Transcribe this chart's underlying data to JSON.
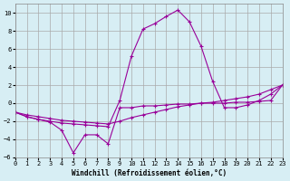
{
  "xlabel": "Windchill (Refroidissement éolien,°C)",
  "bg_color": "#d7eef4",
  "grid_color": "#aaaaaa",
  "line_color": "#990099",
  "xlim": [
    0,
    23
  ],
  "ylim": [
    -6,
    11
  ],
  "xticks": [
    0,
    1,
    2,
    3,
    4,
    5,
    6,
    7,
    8,
    9,
    10,
    11,
    12,
    13,
    14,
    15,
    16,
    17,
    18,
    19,
    20,
    21,
    22,
    23
  ],
  "yticks": [
    -6,
    -4,
    -2,
    0,
    2,
    4,
    6,
    8,
    10
  ],
  "series_peak_x": [
    0,
    1,
    2,
    3,
    4,
    5,
    6,
    7,
    8,
    9,
    10,
    11,
    12,
    13,
    14,
    15,
    16,
    17,
    18,
    19,
    20,
    21,
    22,
    23
  ],
  "series_peak_y": [
    -1.0,
    -1.5,
    -1.8,
    -2.0,
    -2.2,
    -2.3,
    -2.4,
    -2.5,
    -2.6,
    0.3,
    5.2,
    8.2,
    8.8,
    9.6,
    10.3,
    9.0,
    6.3,
    2.4,
    -0.5,
    -0.5,
    -0.2,
    0.3,
    1.0,
    2.0
  ],
  "series_dip_x": [
    0,
    1,
    2,
    3,
    4,
    5,
    6,
    7,
    8,
    9,
    10,
    11,
    12,
    13,
    14,
    15,
    16,
    17,
    18,
    19,
    20,
    21,
    22,
    23
  ],
  "series_dip_y": [
    -1.0,
    -1.5,
    -1.8,
    -2.1,
    -3.0,
    -5.5,
    -3.5,
    -3.5,
    -4.5,
    -0.5,
    -0.5,
    -0.3,
    -0.3,
    -0.2,
    -0.1,
    -0.1,
    0.0,
    0.0,
    0.0,
    0.1,
    0.1,
    0.2,
    0.3,
    2.0
  ],
  "series_flat_x": [
    0,
    1,
    2,
    3,
    4,
    5,
    6,
    7,
    8,
    9,
    10,
    11,
    12,
    13,
    14,
    15,
    16,
    17,
    18,
    19,
    20,
    21,
    22,
    23
  ],
  "series_flat_y": [
    -1.0,
    -1.3,
    -1.5,
    -1.7,
    -1.9,
    -2.0,
    -2.1,
    -2.2,
    -2.3,
    -2.0,
    -1.6,
    -1.3,
    -1.0,
    -0.7,
    -0.4,
    -0.2,
    0.0,
    0.1,
    0.3,
    0.5,
    0.7,
    1.0,
    1.5,
    2.0
  ]
}
